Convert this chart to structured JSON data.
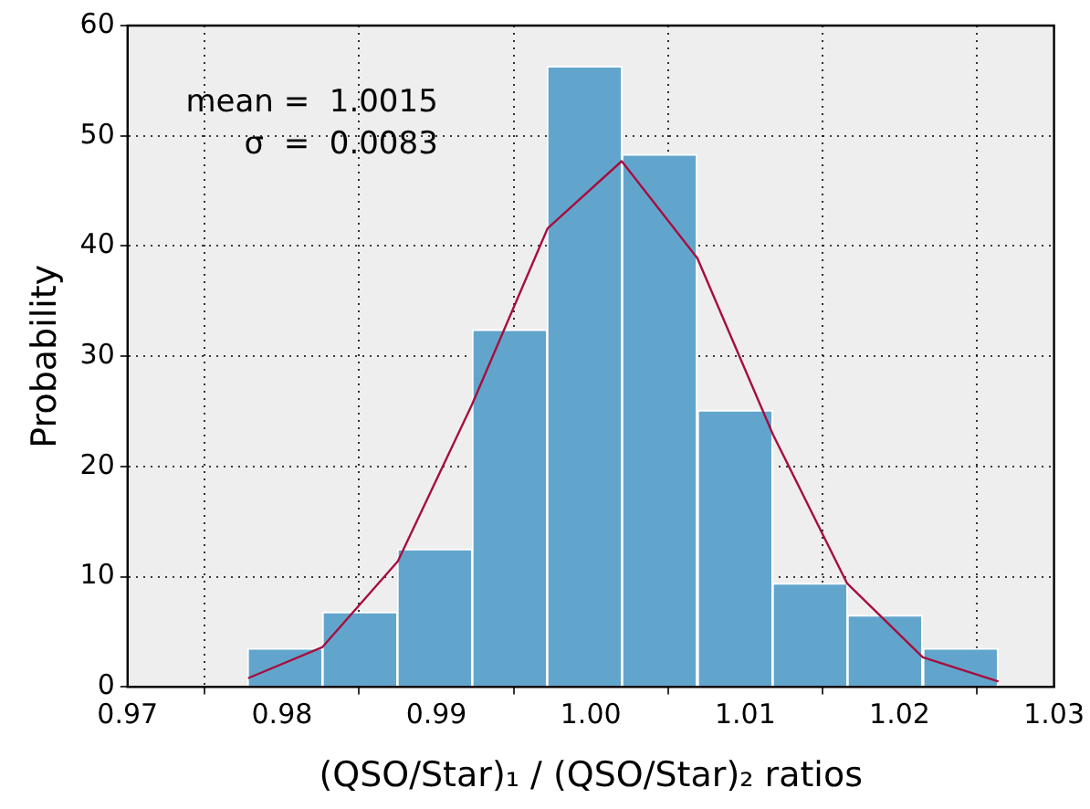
{
  "chart_data": {
    "type": "histogram",
    "xlabel": "(QSO/Star)₁ / (QSO/Star)₂ ratios",
    "ylabel": "Probability",
    "bins": [
      0.9778,
      0.9826,
      0.9875,
      0.9923,
      0.9972,
      1.002,
      1.0069,
      1.0118,
      1.0166,
      1.0215,
      1.0264
    ],
    "values": [
      3.5,
      6.8,
      12.5,
      32.4,
      56.3,
      48.3,
      25.1,
      9.4,
      6.5,
      3.5
    ],
    "color": "#62a5cc",
    "series": [
      {
        "type": "line",
        "color": "#a50f3f",
        "x": [
          0.9778,
          0.9826,
          0.9875,
          0.9923,
          0.9972,
          1.002,
          1.0069,
          1.0118,
          1.0166,
          1.0215,
          1.0264
        ],
        "values": [
          0.8,
          3.6,
          11.4,
          25.6,
          41.6,
          47.7,
          38.9,
          22.9,
          9.4,
          2.7,
          0.5
        ]
      }
    ],
    "xlim": [
      0.97,
      1.03
    ],
    "xticks": [
      0.97,
      0.98,
      0.99,
      {
        "value": 1,
        "label": "1.00"
      },
      1.01,
      1.02,
      1.03
    ],
    "ylim": [
      0,
      60
    ],
    "yticks": [
      0,
      10,
      20,
      30,
      40,
      50,
      60
    ],
    "grid": true,
    "annotations": [
      "mean =  1.0015",
      "σ  =  0.0083"
    ]
  }
}
